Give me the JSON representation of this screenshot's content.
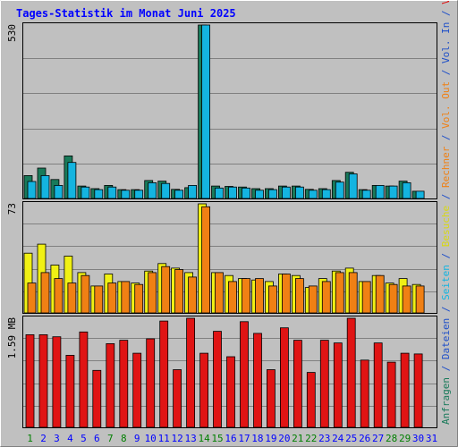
{
  "chart_data": {
    "type": "bar",
    "title": "Tages-Statistik im Monat Juni 2025",
    "x": [
      "1",
      "2",
      "3",
      "4",
      "5",
      "6",
      "7",
      "8",
      "9",
      "10",
      "11",
      "12",
      "13",
      "14",
      "15",
      "16",
      "17",
      "18",
      "19",
      "20",
      "21",
      "22",
      "23",
      "24",
      "25",
      "26",
      "27",
      "28",
      "29",
      "30",
      "31"
    ],
    "weekend_days": [
      "1",
      "7",
      "8",
      "14",
      "15",
      "21",
      "22",
      "28",
      "29"
    ],
    "panels": [
      {
        "max_label": "530",
        "ymax": 530,
        "series": [
          {
            "name": "Anfragen",
            "color": "#197a5a",
            "values": [
              70,
              93,
              58,
              130,
              38,
              30,
              40,
              27,
              27,
              55,
              53,
              28,
              33,
              530,
              38,
              37,
              35,
              30,
              30,
              38,
              38,
              28,
              30,
              55,
              80,
              27,
              40,
              38,
              53,
              22,
              null
            ]
          },
          {
            "name": "Dateien",
            "color": "#14b4e0",
            "values": [
              52,
              70,
              40,
              110,
              35,
              27,
              35,
              25,
              25,
              48,
              46,
              25,
              40,
              530,
              32,
              35,
              32,
              25,
              27,
              35,
              35,
              25,
              27,
              50,
              75,
              25,
              40,
              38,
              48,
              22,
              null
            ]
          }
        ]
      },
      {
        "max_label": "73",
        "ymax": 73,
        "series": [
          {
            "name": "Seiten",
            "color": "#14b4e0",
            "values": [
              null,
              null,
              null,
              null,
              null,
              null,
              null,
              null,
              null,
              null,
              null,
              null,
              null,
              null,
              null,
              null,
              null,
              null,
              null,
              null,
              null,
              null,
              null,
              null,
              null,
              null,
              null,
              null,
              null,
              null,
              null
            ]
          },
          {
            "name": "Besuche",
            "color": "#f0f014",
            "values": [
              40,
              46,
              32,
              38,
              27,
              18,
              26,
              21,
              20,
              28,
              33,
              30,
              27,
              73,
              27,
              25,
              23,
              22,
              21,
              26,
              25,
              17,
              23,
              28,
              30,
              21,
              25,
              20,
              23,
              19,
              null
            ]
          },
          {
            "name": "Rechner",
            "color": "#f08014",
            "values": [
              20,
              27,
              23,
              20,
              25,
              18,
              20,
              21,
              19,
              27,
              31,
              29,
              24,
              71,
              27,
              21,
              23,
              23,
              18,
              26,
              23,
              18,
              21,
              27,
              27,
              21,
              25,
              19,
              18,
              18,
              null
            ]
          }
        ]
      },
      {
        "max_label": "1.59 MB",
        "ymax": 1.59,
        "series": [
          {
            "name": "Vol. Out",
            "color": "#f08014",
            "values": [
              null,
              null,
              null,
              null,
              null,
              null,
              null,
              null,
              null,
              null,
              null,
              null,
              null,
              null,
              null,
              null,
              null,
              null,
              null,
              null,
              null,
              null,
              null,
              null,
              null,
              null,
              null,
              null,
              null,
              null,
              null
            ]
          },
          {
            "name": "Vol. In",
            "color": "#2050c8",
            "values": [
              null,
              null,
              null,
              null,
              null,
              null,
              null,
              null,
              null,
              null,
              null,
              null,
              null,
              null,
              null,
              null,
              null,
              null,
              null,
              null,
              null,
              null,
              null,
              null,
              null,
              null,
              null,
              null,
              null,
              null,
              null
            ]
          },
          {
            "name": "Volumen",
            "color": "#e01414",
            "values": [
              1.35,
              1.35,
              1.32,
              1.05,
              1.39,
              0.83,
              1.22,
              1.27,
              1.08,
              1.29,
              1.55,
              0.84,
              1.59,
              1.08,
              1.4,
              1.03,
              1.54,
              1.37,
              0.84,
              1.45,
              1.27,
              0.8,
              1.27,
              1.23,
              1.59,
              0.98,
              1.23,
              0.95,
              1.08,
              1.07,
              null
            ]
          }
        ]
      }
    ],
    "side_legend": [
      {
        "text": "Anfragen",
        "color": "#197a5a"
      },
      {
        "text": " / ",
        "color": "#2050c8"
      },
      {
        "text": "Dateien",
        "color": "#2050c8"
      },
      {
        "text": " / ",
        "color": "#2050c8"
      },
      {
        "text": "Seiten",
        "color": "#14b4e0"
      },
      {
        "text": " / ",
        "color": "#2050c8"
      },
      {
        "text": "Besuche",
        "color": "#d8d814"
      },
      {
        "text": " / ",
        "color": "#2050c8"
      },
      {
        "text": "Rechner",
        "color": "#f08014"
      },
      {
        "text": " / ",
        "color": "#2050c8"
      },
      {
        "text": "Vol. Out",
        "color": "#f08014"
      },
      {
        "text": " / ",
        "color": "#2050c8"
      },
      {
        "text": "Vol. In",
        "color": "#2050c8"
      },
      {
        "text": " / ",
        "color": "#2050c8"
      },
      {
        "text": "Volumen",
        "color": "#e01414"
      }
    ],
    "grid": true,
    "colors": {
      "weekday_label": "#0000ff",
      "weekend_label": "#007f00",
      "title": "#0000ff",
      "axis_label": "#000000",
      "background": "#c0c0c0"
    }
  }
}
